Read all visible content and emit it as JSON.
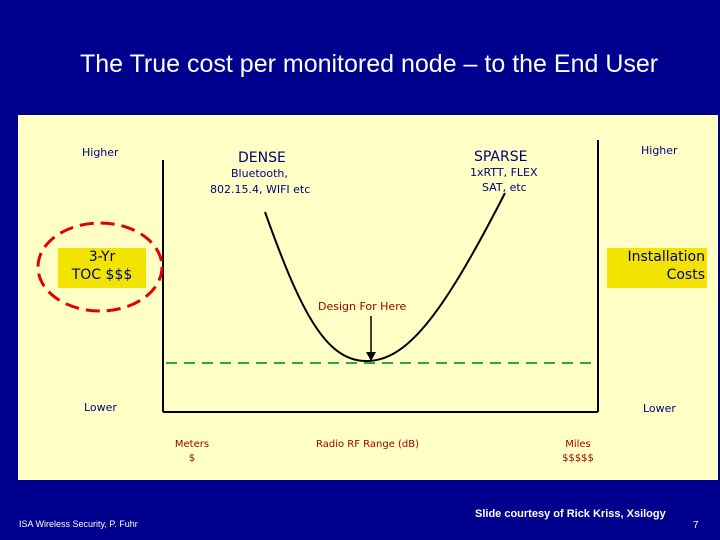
{
  "slide": {
    "title": "The True cost per monitored node – to the End User",
    "page_number": "7",
    "footer_left": "ISA Wireless Security, P. Fuhr",
    "footer_right": "Slide courtesy of Rick Kriss, Xsilogy"
  },
  "diagram": {
    "higher_left": "Higher",
    "higher_right": "Higher",
    "lower_left": "Lower",
    "lower_right": "Lower",
    "dense_title": "DENSE",
    "dense_line1": "Bluetooth,",
    "dense_line2": "802.15.4, WIFI etc",
    "sparse_title": "SPARSE",
    "sparse_line1": "1xRTT, FLEX",
    "sparse_line2": "SAT, etc",
    "toc_line1": "3-Yr",
    "toc_line2": "TOC $$$",
    "install_line1": "Installation",
    "install_line2": "Costs",
    "design_label": "Design For Here",
    "x_left_line1": "Meters",
    "x_left_line2": "$",
    "x_center": "Radio RF Range (dB)",
    "x_right_line1": "Miles",
    "x_right_line2": "$$$$$"
  },
  "colors": {
    "background": "#00008e",
    "panel": "#ffffc6",
    "highlight_box": "#f2e400",
    "curve": "#000000",
    "dashed_line": "#2ea82e",
    "circle": "#e00000",
    "dim_text": "#a00000"
  }
}
